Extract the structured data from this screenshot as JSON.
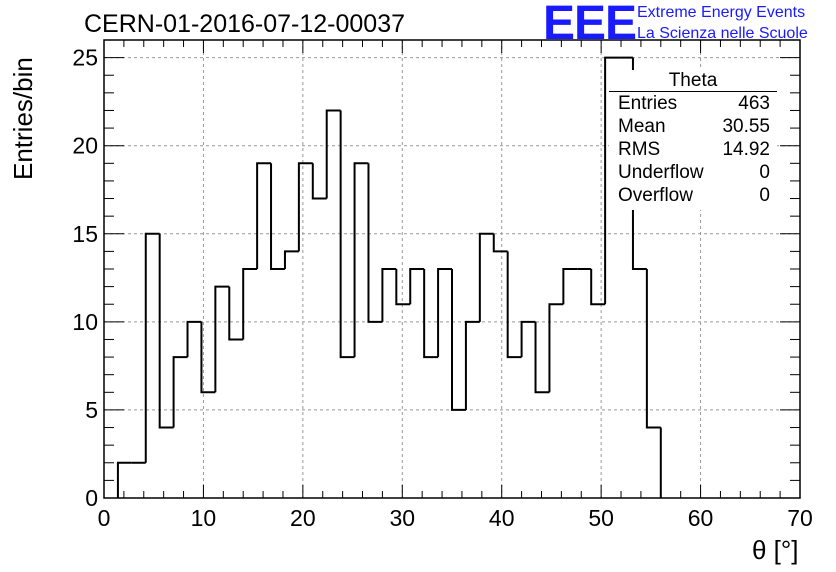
{
  "title": "CERN-01-2016-07-12-00037",
  "logo": {
    "mark": "EEE",
    "line1": "Extreme Energy Events",
    "line2": "La Scienza nelle Scuole",
    "color": "#1a1aff"
  },
  "stats_box": {
    "title": "Theta",
    "rows": [
      {
        "key": "Entries",
        "value": "463"
      },
      {
        "key": "Mean",
        "value": "30.55"
      },
      {
        "key": "RMS",
        "value": "14.92"
      },
      {
        "key": "Underflow",
        "value": "0"
      },
      {
        "key": "Overflow",
        "value": "0"
      }
    ]
  },
  "chart_data": {
    "type": "bar",
    "style": "step-histogram",
    "title": "CERN-01-2016-07-12-00037",
    "xlabel": "θ [°]",
    "ylabel": "Entries/bin",
    "xlim": [
      0,
      70
    ],
    "ylim": [
      0,
      26
    ],
    "xticks": [
      0,
      10,
      20,
      30,
      40,
      50,
      60,
      70
    ],
    "yticks": [
      0,
      5,
      10,
      15,
      20,
      25
    ],
    "grid": true,
    "bin_width": 1.4,
    "bin_edges_start": 1.4,
    "values": [
      2,
      2,
      15,
      4,
      8,
      10,
      6,
      12,
      9,
      13,
      19,
      13,
      14,
      19,
      17,
      22,
      8,
      19,
      10,
      13,
      11,
      13,
      8,
      13,
      5,
      10,
      15,
      14,
      8,
      10,
      6,
      11,
      13,
      13,
      11,
      25,
      25,
      13,
      4
    ]
  }
}
